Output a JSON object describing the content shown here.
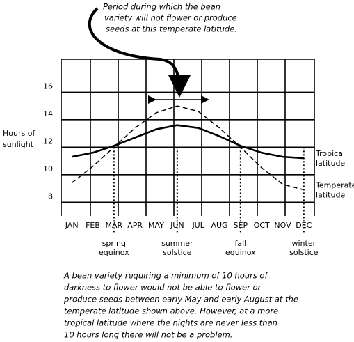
{
  "chart_data": {
    "type": "line",
    "top_note": [
      "Period during which the bean",
      "variety will not flower or produce",
      "seeds at this temperate latitude."
    ],
    "ylabel": [
      "Hours of",
      "sunlight"
    ],
    "categories": [
      "JAN",
      "FEB",
      "MAR",
      "APR",
      "MAY",
      "JUN",
      "JUL",
      "AUG",
      "SEP",
      "OCT",
      "NOV",
      "DEC"
    ],
    "series": [
      {
        "name": "Tropical latitude",
        "color": "#000000",
        "style": "solid",
        "values": [
          11.3,
          11.6,
          12.1,
          12.7,
          13.3,
          13.6,
          13.4,
          12.8,
          12.1,
          11.6,
          11.3,
          11.2
        ]
      },
      {
        "name": "Temperate latitude",
        "color": "#000000",
        "style": "dashed",
        "values": [
          9.4,
          10.6,
          12.0,
          13.4,
          14.5,
          15.0,
          14.6,
          13.4,
          12.0,
          10.5,
          9.3,
          8.9
        ]
      }
    ],
    "events": [
      "spring equinox",
      "summer solstice",
      "fall equinox",
      "winter solstice"
    ],
    "ylim": [
      7,
      18.4
    ],
    "yticks": [
      8,
      10,
      12,
      14,
      16
    ],
    "grid": true,
    "bottom_note": [
      "A bean variety requiring a minimum of 10 hours of",
      "darkness to flower would not be able to flower or",
      "produce seeds between early May and early August at the",
      "temperate latitude shown above.  However, at a more",
      "tropical latitude where the nights are never less than",
      "10 hours long there will not be a problem."
    ]
  }
}
